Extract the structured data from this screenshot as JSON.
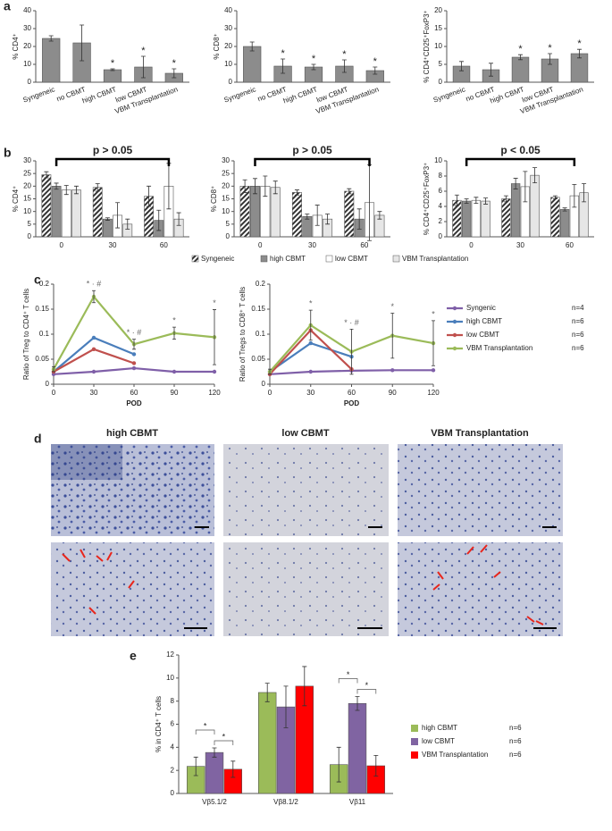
{
  "panel_letters": [
    "a",
    "b",
    "c",
    "d",
    "e"
  ],
  "histology": {
    "titles": [
      "high CBMT",
      "low CBMT",
      "VBM Transplantation"
    ]
  },
  "chart_data": [
    {
      "type": "bar",
      "ylabel": "% CD4⁺",
      "categories": [
        "Syngeneic",
        "no CBMT",
        "high CBMT",
        "low CBMT",
        "VBM Transplantation"
      ],
      "values": [
        24.5,
        22,
        7,
        8.5,
        5
      ],
      "errors": [
        1.5,
        10,
        0.5,
        6,
        2.5
      ],
      "significance": [
        null,
        null,
        "*",
        "*",
        "*"
      ],
      "color": "#8c8c8c",
      "ylim": [
        0,
        40
      ],
      "yticks": [
        0,
        10,
        20,
        30,
        40
      ]
    },
    {
      "type": "bar",
      "ylabel": "% CD8⁺",
      "categories": [
        "Syngeneic",
        "no CBMT",
        "high CBMT",
        "low CBMT",
        "VBM Transplantation"
      ],
      "values": [
        20,
        9,
        8.5,
        9,
        6.5
      ],
      "errors": [
        2.5,
        4,
        1.5,
        3.5,
        2
      ],
      "significance": [
        null,
        "*",
        "*",
        "*",
        "*"
      ],
      "color": "#8c8c8c",
      "ylim": [
        0,
        40
      ],
      "yticks": [
        0,
        10,
        20,
        30,
        40
      ]
    },
    {
      "type": "bar",
      "ylabel": "% CD4⁺CD25⁺FoxP3⁺",
      "categories": [
        "Syngeneic",
        "no CBMT",
        "high CBMT",
        "low CBMT",
        "VBM Transplantation"
      ],
      "values": [
        4.5,
        3.5,
        7,
        6.5,
        8
      ],
      "errors": [
        1.3,
        1.8,
        0.7,
        1.5,
        1.2
      ],
      "significance": [
        null,
        null,
        "*",
        "*",
        "*"
      ],
      "color": "#8c8c8c",
      "ylim": [
        0,
        20
      ],
      "yticks": [
        0,
        5,
        10,
        15,
        20
      ]
    },
    {
      "type": "bar",
      "ylabel": "% CD4⁺",
      "categories": [
        "0",
        "30",
        "60"
      ],
      "annotation": "p > 0.05",
      "ylim": [
        0,
        30
      ],
      "yticks": [
        0,
        5,
        10,
        15,
        20,
        25,
        30
      ],
      "series": [
        {
          "name": "Syngeneic",
          "color": "#333333",
          "hatch": true,
          "values": [
            24.5,
            19.5,
            16
          ],
          "errors": [
            1.2,
            1.5,
            4
          ]
        },
        {
          "name": "high CBMT",
          "color": "#8c8c8c",
          "values": [
            20,
            7,
            6.5
          ],
          "errors": [
            1.2,
            0.5,
            4
          ]
        },
        {
          "name": "low CBMT",
          "color": "#ffffff",
          "values": [
            18.5,
            8.5,
            20
          ],
          "errors": [
            1.8,
            5,
            9
          ]
        },
        {
          "name": "VBM Transplantation",
          "color": "#e6e6e6",
          "values": [
            18.5,
            5,
            7
          ],
          "errors": [
            1.5,
            2,
            2.5
          ]
        }
      ]
    },
    {
      "type": "bar",
      "ylabel": "% CD8⁺",
      "categories": [
        "0",
        "30",
        "60"
      ],
      "annotation": "p > 0.05",
      "ylim": [
        0,
        30
      ],
      "yticks": [
        0,
        5,
        10,
        15,
        20,
        25,
        30
      ],
      "series": [
        {
          "color": "#333333",
          "hatch": true,
          "values": [
            20,
            17.5,
            18
          ],
          "errors": [
            2.5,
            1,
            1
          ]
        },
        {
          "color": "#8c8c8c",
          "values": [
            20,
            8,
            7
          ],
          "errors": [
            3,
            1,
            4
          ]
        },
        {
          "color": "#ffffff",
          "values": [
            20,
            8.5,
            13.5
          ],
          "errors": [
            4,
            4,
            15
          ]
        },
        {
          "color": "#e6e6e6",
          "values": [
            19.5,
            7,
            8.5
          ],
          "errors": [
            2.5,
            2,
            1.5
          ]
        }
      ]
    },
    {
      "type": "bar",
      "ylabel": "% CD4⁺CD25⁺FoxP3⁺",
      "categories": [
        "0",
        "30",
        "60"
      ],
      "annotation": "p < 0.05",
      "ylim": [
        0,
        10
      ],
      "yticks": [
        0,
        2,
        4,
        6,
        8,
        10
      ],
      "series": [
        {
          "color": "#333333",
          "hatch": true,
          "values": [
            4.8,
            5,
            5.2
          ],
          "errors": [
            0.7,
            0.4,
            0.2
          ]
        },
        {
          "color": "#8c8c8c",
          "values": [
            4.7,
            7,
            3.6
          ],
          "errors": [
            0.3,
            0.7,
            0.2
          ]
        },
        {
          "color": "#ffffff",
          "values": [
            4.8,
            6.6,
            5.4
          ],
          "errors": [
            0.4,
            2,
            1.5
          ]
        },
        {
          "color": "#e6e6e6",
          "values": [
            4.7,
            8.1,
            5.8
          ],
          "errors": [
            0.4,
            1,
            1.2
          ]
        }
      ]
    },
    {
      "type": "line",
      "ylabel": "Ratio of Treg to CD4⁺ T cells",
      "xlabel": "POD",
      "x": [
        0,
        30,
        60,
        90,
        120
      ],
      "xlim": [
        0,
        120
      ],
      "xticks": [
        0,
        30,
        60,
        90,
        120
      ],
      "ylim": [
        0,
        0.2
      ],
      "yticks": [
        0,
        0.05,
        0.1,
        0.15,
        0.2
      ],
      "significance": [
        null,
        "* · #",
        "* · #",
        "*",
        "*"
      ],
      "series": [
        {
          "color": "#7f5fa8",
          "values": [
            0.02,
            0.025,
            0.032,
            0.025,
            0.025
          ]
        },
        {
          "color": "#4a7ebb",
          "values": [
            0.025,
            0.093,
            0.06,
            null,
            null
          ]
        },
        {
          "color": "#c0504d",
          "values": [
            0.025,
            0.07,
            0.042,
            null,
            null
          ]
        },
        {
          "color": "#9bbb59",
          "values": [
            0.03,
            0.175,
            0.08,
            0.102,
            0.094
          ],
          "errors": [
            0.005,
            0.012,
            0.01,
            0.012,
            0.055
          ]
        }
      ]
    },
    {
      "type": "line",
      "ylabel": "Ratio of Tregs to CD8⁺ T cells",
      "xlabel": "POD",
      "x": [
        0,
        30,
        60,
        90,
        120
      ],
      "xlim": [
        0,
        120
      ],
      "xticks": [
        0,
        30,
        60,
        90,
        120
      ],
      "ylim": [
        0,
        0.2
      ],
      "yticks": [
        0,
        0.05,
        0.1,
        0.15,
        0.2
      ],
      "significance": [
        null,
        "*",
        "* · #",
        "*",
        "*"
      ],
      "series": [
        {
          "name": "Syngenic",
          "n": "n=4",
          "color": "#7f5fa8",
          "values": [
            0.02,
            0.025,
            0.027,
            0.028,
            0.028
          ]
        },
        {
          "name": "high CBMT",
          "n": "n=6",
          "color": "#4a7ebb",
          "values": [
            0.025,
            0.082,
            0.055,
            null,
            null
          ]
        },
        {
          "name": "low CBMT",
          "n": "n=6",
          "color": "#c0504d",
          "values": [
            0.02,
            0.108,
            0.03,
            null,
            null
          ]
        },
        {
          "name": "VBM Transplantation",
          "n": "n=6",
          "color": "#9bbb59",
          "values": [
            0.025,
            0.118,
            0.065,
            0.097,
            0.082
          ],
          "errors": [
            0.005,
            0.03,
            0.045,
            0.045,
            0.045
          ]
        }
      ]
    },
    {
      "type": "bar",
      "ylabel": "% in CD4⁺ T cells",
      "categories": [
        "Vβ5.1/2",
        "Vβ8.1/2",
        "Vβ11"
      ],
      "ylim": [
        0,
        12
      ],
      "yticks": [
        0,
        2,
        4,
        6,
        8,
        10,
        12
      ],
      "significance": [
        "*",
        "*",
        "*",
        "*"
      ],
      "series": [
        {
          "name": "high CBMT",
          "n": "n=6",
          "color": "#9bbb59",
          "values": [
            2.35,
            8.75,
            2.5
          ],
          "errors": [
            0.8,
            0.8,
            1.5
          ]
        },
        {
          "name": "low CBMT",
          "n": "n=6",
          "color": "#8064a2",
          "values": [
            3.55,
            7.5,
            7.8
          ],
          "errors": [
            0.4,
            1.8,
            0.6
          ]
        },
        {
          "name": "VBM Transplantation",
          "n": "n=6",
          "color": "#ff0000",
          "values": [
            2.1,
            9.3,
            2.4
          ],
          "errors": [
            0.7,
            1.7,
            0.9
          ]
        }
      ]
    }
  ]
}
